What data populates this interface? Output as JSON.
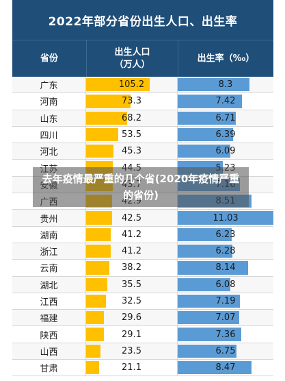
{
  "title": "2022年部分省份出生人口、出生率",
  "headers": {
    "province": "省份",
    "births_line1": "出生人口",
    "births_line2": "（万人）",
    "rate": "出生率（‰）"
  },
  "overlay_text": "去年疫情最严重的几个省(2020年疫情严重的省份)",
  "colors": {
    "header_bg": "#1f4e79",
    "births_bar": "#ffc000",
    "rate_bar": "#5b9bd5"
  },
  "rows": [
    {
      "province": "广东",
      "births": "105.2",
      "rate": "8.3"
    },
    {
      "province": "河南",
      "births": "73.3",
      "rate": "7.42"
    },
    {
      "province": "山东",
      "births": "68.2",
      "rate": "6.71"
    },
    {
      "province": "四川",
      "births": "53.5",
      "rate": "6.39"
    },
    {
      "province": "河北",
      "births": "45.3",
      "rate": "6.09"
    },
    {
      "province": "江苏",
      "births": "44.5",
      "rate": "5.23"
    },
    {
      "province": "安徽",
      "births": "43.7",
      "rate": "7.16"
    },
    {
      "province": "广西",
      "births": "42.9",
      "rate": "8.51"
    },
    {
      "province": "贵州",
      "births": "42.5",
      "rate": "11.03"
    },
    {
      "province": "湖南",
      "births": "41.2",
      "rate": "6.23"
    },
    {
      "province": "浙江",
      "births": "41.2",
      "rate": "6.28"
    },
    {
      "province": "云南",
      "births": "38.2",
      "rate": "8.14"
    },
    {
      "province": "湖北",
      "births": "35.5",
      "rate": "6.08"
    },
    {
      "province": "江西",
      "births": "32.5",
      "rate": "7.19"
    },
    {
      "province": "福建",
      "births": "29.6",
      "rate": "7.07"
    },
    {
      "province": "陕西",
      "births": "29.1",
      "rate": "7.36"
    },
    {
      "province": "山西",
      "births": "23.5",
      "rate": "6.75"
    },
    {
      "province": "甘肃",
      "births": "21.1",
      "rate": "8.47"
    }
  ]
}
